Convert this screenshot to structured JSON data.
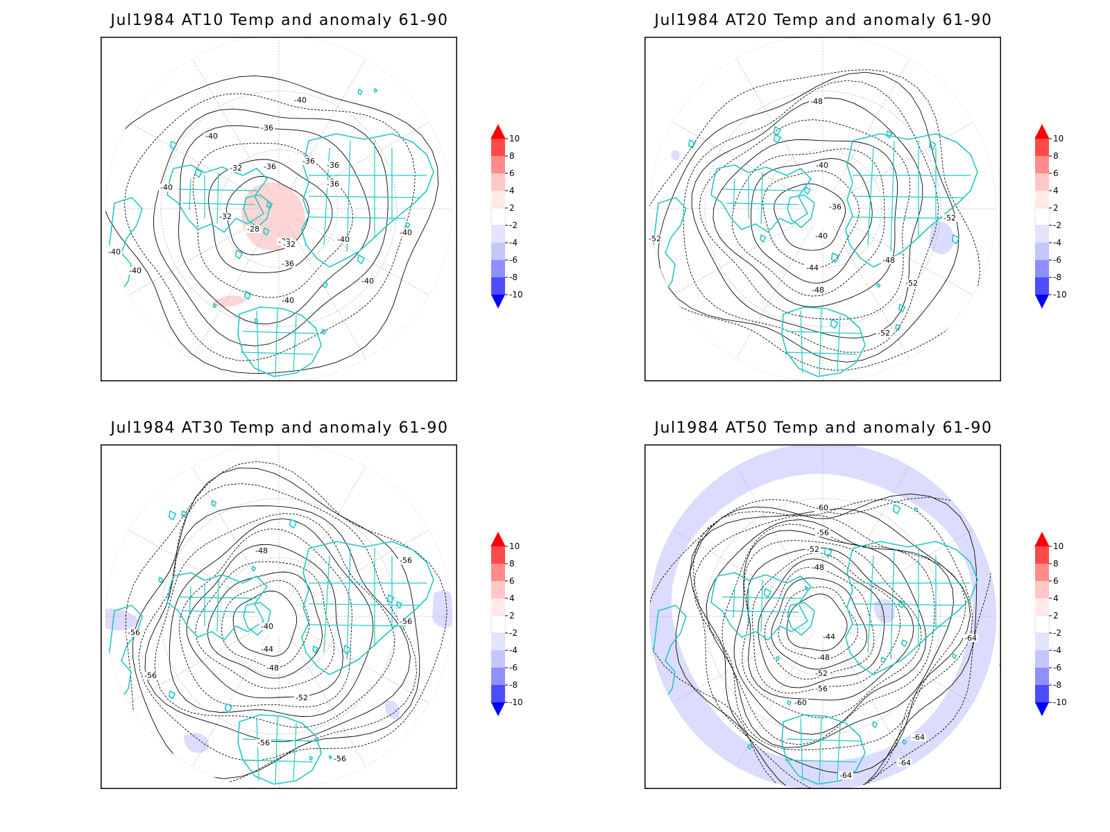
{
  "panels": [
    {
      "title": "Jul1984 AT10 Temp and anomaly 61-90",
      "contour_labels": [
        "-40",
        "-36",
        "-40",
        "-36",
        "-36",
        "-40",
        "-32",
        "-36",
        "-32",
        "-36",
        "-32",
        "-28",
        "-32",
        "-36",
        "-40",
        "-40",
        "-40",
        "-40",
        "-40",
        "-40"
      ]
    },
    {
      "title": "Jul1984 AT20 Temp and anomaly 61-90",
      "contour_labels": [
        "-48",
        "-40",
        "-36",
        "-40",
        "-44",
        "-48",
        "-48",
        "-52",
        "-52",
        "-52",
        "-52"
      ]
    },
    {
      "title": "Jul1984 AT30 Temp and anomaly 61-90",
      "contour_labels": [
        "-48",
        "-40",
        "-44",
        "-48",
        "-52",
        "-56",
        "-56",
        "-56",
        "-56",
        "-56",
        "-56"
      ]
    },
    {
      "title": "Jul1984 AT50 Temp and anomaly 61-90",
      "contour_labels": [
        "-60",
        "-56",
        "-52",
        "-48",
        "-44",
        "-48",
        "-52",
        "-56",
        "-60",
        "-64",
        "-64",
        "-64",
        "-64",
        "-64"
      ]
    }
  ],
  "colorbar": {
    "tick_labels": [
      "10",
      "8",
      "6",
      "4",
      "2",
      "-2",
      "-4",
      "-6",
      "-8",
      "-10"
    ],
    "colors": [
      "#ff0000",
      "#ff4a4a",
      "#ff8c8c",
      "#ffc7c7",
      "#ffeaea",
      "#ffffff",
      "#e4e4ff",
      "#c6c6ff",
      "#8f8fff",
      "#4d4dff",
      "#0000ff"
    ]
  },
  "colors": {
    "coastline": "#21c6c6",
    "contour": "#000000",
    "warm_anomaly": "#ffd6d6",
    "cold_anomaly": "#dcdcff",
    "graticule": "#9a9a9a"
  }
}
